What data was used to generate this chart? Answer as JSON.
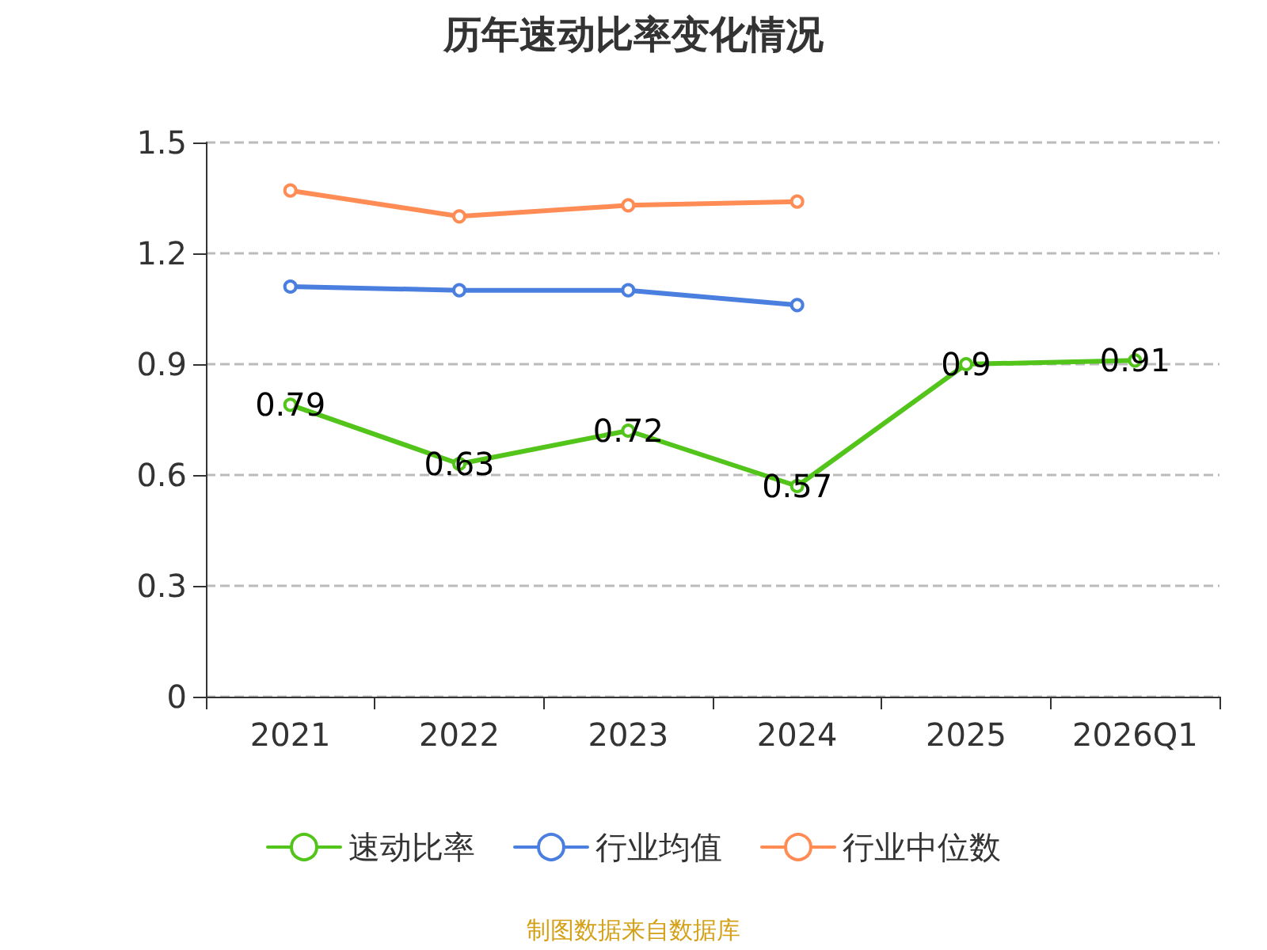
{
  "chart_data": {
    "type": "line",
    "title": "历年速动比率变化情况",
    "categories": [
      "2021",
      "2022",
      "2023",
      "2024",
      "2025",
      "2026Q1"
    ],
    "series": [
      {
        "name": "速动比率",
        "color": "#52c41a",
        "values": [
          0.79,
          0.63,
          0.72,
          0.57,
          0.9,
          0.91
        ],
        "data_labels": true
      },
      {
        "name": "行业均值",
        "color": "#4a7fe0",
        "values": [
          1.11,
          1.1,
          1.1,
          1.06,
          null,
          null
        ]
      },
      {
        "name": "行业中位数",
        "color": "#ff8c55",
        "values": [
          1.37,
          1.3,
          1.33,
          1.34,
          null,
          null
        ]
      }
    ],
    "ylim": [
      0,
      1.5
    ],
    "yticks": [
      0,
      0.3,
      0.6,
      0.9,
      1.2,
      1.5
    ],
    "grid": "y",
    "legend": "bottom",
    "marker": "circle",
    "line_style": "solid",
    "annotations": [
      "制图数据来自数据库"
    ]
  }
}
